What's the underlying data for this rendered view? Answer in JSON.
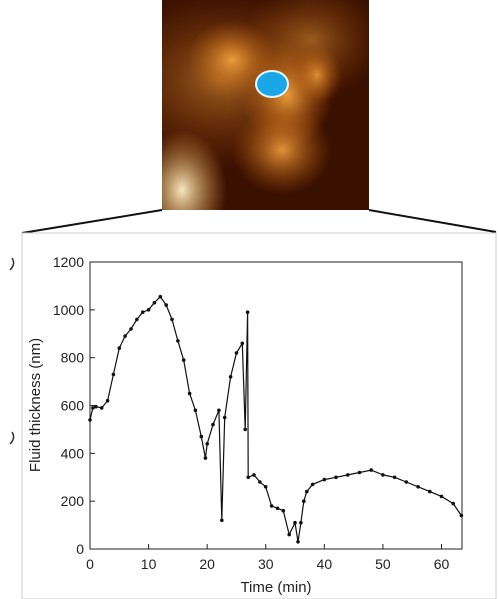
{
  "afm_image": {
    "colors": {
      "dark": "#3a1000",
      "mid": "#b8580a",
      "bright": "#f2a23e",
      "highlight": "#fff3c8",
      "marker": "#19a7e8",
      "marker_outline": "#e8f6ff"
    }
  },
  "chart_data": {
    "type": "scatter",
    "xlabel": "Time (min)",
    "ylabel": "Fluid thickness (nm)",
    "xlim": [
      0,
      63.5
    ],
    "ylim": [
      0,
      1200
    ],
    "x_ticks": [
      "0",
      "10",
      "20",
      "30",
      "40",
      "50",
      "60"
    ],
    "y_ticks": [
      "0",
      "200",
      "400",
      "600",
      "800",
      "1000",
      "1200"
    ],
    "grid": false,
    "marker_color": "#111111",
    "series": [
      {
        "values": [
          [
            0,
            540
          ],
          [
            0.5,
            590
          ],
          [
            1,
            595
          ],
          [
            2,
            590
          ],
          [
            3,
            620
          ],
          [
            4,
            730
          ],
          [
            5,
            840
          ],
          [
            6,
            890
          ],
          [
            7,
            920
          ],
          [
            8,
            960
          ],
          [
            9,
            990
          ],
          [
            10,
            1000
          ],
          [
            11,
            1030
          ],
          [
            12,
            1055
          ],
          [
            13,
            1020
          ],
          [
            14,
            960
          ],
          [
            15,
            870
          ],
          [
            16,
            790
          ],
          [
            17,
            650
          ],
          [
            18,
            580
          ],
          [
            19,
            470
          ],
          [
            19.7,
            380
          ],
          [
            20,
            440
          ],
          [
            21,
            520
          ],
          [
            22,
            580
          ],
          [
            22.5,
            120
          ],
          [
            23,
            550
          ],
          [
            24,
            720
          ],
          [
            25,
            820
          ],
          [
            26,
            860
          ],
          [
            26.5,
            500
          ],
          [
            26.9,
            990
          ],
          [
            27,
            300
          ],
          [
            28,
            310
          ],
          [
            29,
            280
          ],
          [
            30,
            260
          ],
          [
            31,
            180
          ],
          [
            32,
            170
          ],
          [
            33,
            160
          ],
          [
            34,
            60
          ],
          [
            35,
            110
          ],
          [
            35.5,
            30
          ],
          [
            36,
            110
          ],
          [
            36.5,
            200
          ],
          [
            37,
            240
          ],
          [
            38,
            270
          ],
          [
            40,
            290
          ],
          [
            42,
            300
          ],
          [
            44,
            310
          ],
          [
            46,
            320
          ],
          [
            48,
            330
          ],
          [
            50,
            310
          ],
          [
            52,
            300
          ],
          [
            54,
            280
          ],
          [
            56,
            260
          ],
          [
            58,
            240
          ],
          [
            60,
            220
          ],
          [
            62,
            190
          ],
          [
            63.4,
            140
          ]
        ]
      }
    ]
  }
}
